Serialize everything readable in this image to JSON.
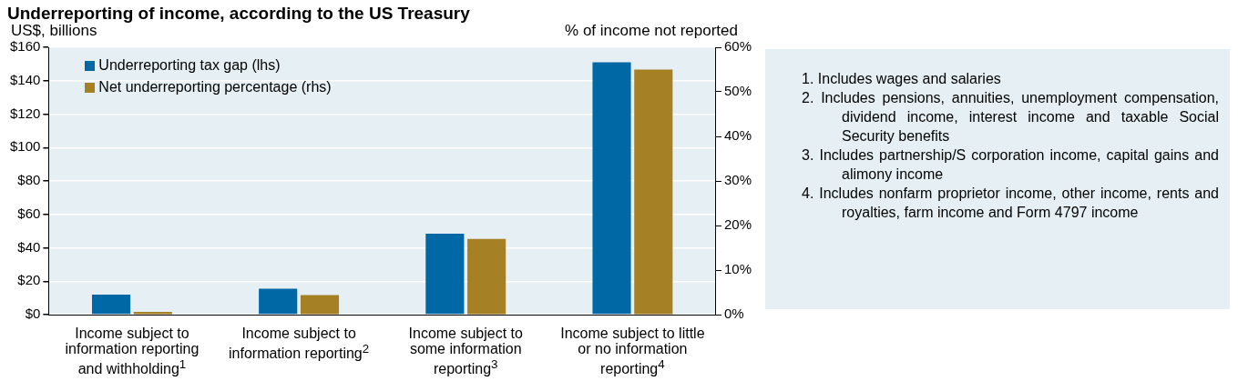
{
  "chart_data": {
    "type": "bar",
    "title": "Underreporting of income, according to the US Treasury",
    "ylabel": "US$, billions",
    "y2label": "% of income not reported",
    "categories": [
      "Income subject to information reporting and withholding$^{1}$",
      "Income subject to information reporting$^{2}$",
      "Income subject to some information reporting$^{3}$",
      "Income subject to little or no information reporting$^{4}$"
    ],
    "series": [
      {
        "name": "Underreporting tax gap (lhs)",
        "color": "#0068a5",
        "values": [
          12,
          15.5,
          48.5,
          151
        ]
      },
      {
        "name": "Net underreporting percentage (rhs)",
        "color": "#a68025",
        "values": [
          0.6,
          4.4,
          17,
          55
        ],
        "axis": "y2"
      }
    ],
    "ylim": [
      0,
      160
    ],
    "yticks": [
      {
        "value": 0,
        "label": "$0"
      },
      {
        "value": 20,
        "label": "$20"
      },
      {
        "value": 40,
        "label": "$40"
      },
      {
        "value": 60,
        "label": "$60"
      },
      {
        "value": 80,
        "label": "$80"
      },
      {
        "value": 100,
        "label": "$100"
      },
      {
        "value": 120,
        "label": "$120"
      },
      {
        "value": 140,
        "label": "$140"
      },
      {
        "value": 160,
        "label": "$160"
      }
    ],
    "y2lim": [
      0,
      60
    ],
    "y2ticks": [
      {
        "value": 0,
        "label": "0%"
      },
      {
        "value": 10,
        "label": "10%"
      },
      {
        "value": 20,
        "label": "20%"
      },
      {
        "value": 30,
        "label": "30%"
      },
      {
        "value": 40,
        "label": "40%"
      },
      {
        "value": 50,
        "label": "50%"
      },
      {
        "value": 60,
        "label": "60%"
      }
    ],
    "grid": "y",
    "legend": "top left",
    "annotations": [
      "1. Includes wages and salaries",
      "2. Includes pensions, annuities, unemployment compensation, dividend income, interest income and taxable Social Security benefits",
      "3. Includes partnership/S corporation income, capital gains and alimony income",
      "4. Includes nonfarm proprietor income, other income, rents and royalties, farm income and Form 4797 income"
    ]
  }
}
